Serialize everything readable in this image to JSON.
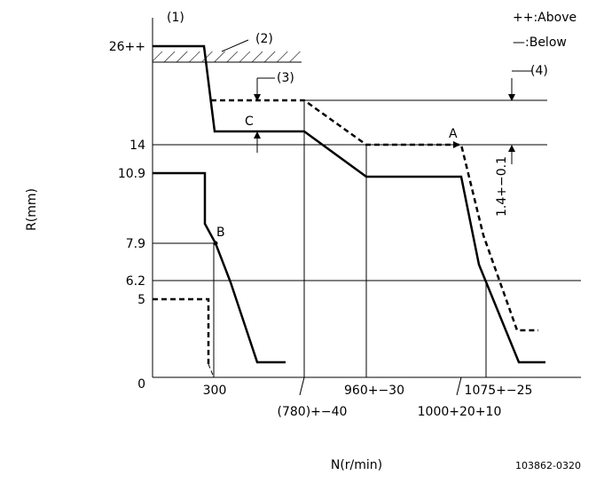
{
  "labels": {
    "ref1": "(1)",
    "ref2": "(2)",
    "ref3": "(3)",
    "ref4": "(4)"
  },
  "legend": {
    "above": "++:Above",
    "below": "—:Below"
  },
  "y_labels": [
    "26++",
    "14",
    "10.9",
    "7.9",
    "6.2",
    "5",
    "0"
  ],
  "x_labels": [
    "300",
    "(780)+−40",
    "960+−30",
    "1000+20+10",
    "1075+−25"
  ],
  "y_axis_title": "R(mm)",
  "x_axis_title": "N(r/min)",
  "points": {
    "a": "A",
    "b": "B",
    "c": "C"
  },
  "tolerance": "1.4+−0.1",
  "drawing_id": "103862-0320"
}
